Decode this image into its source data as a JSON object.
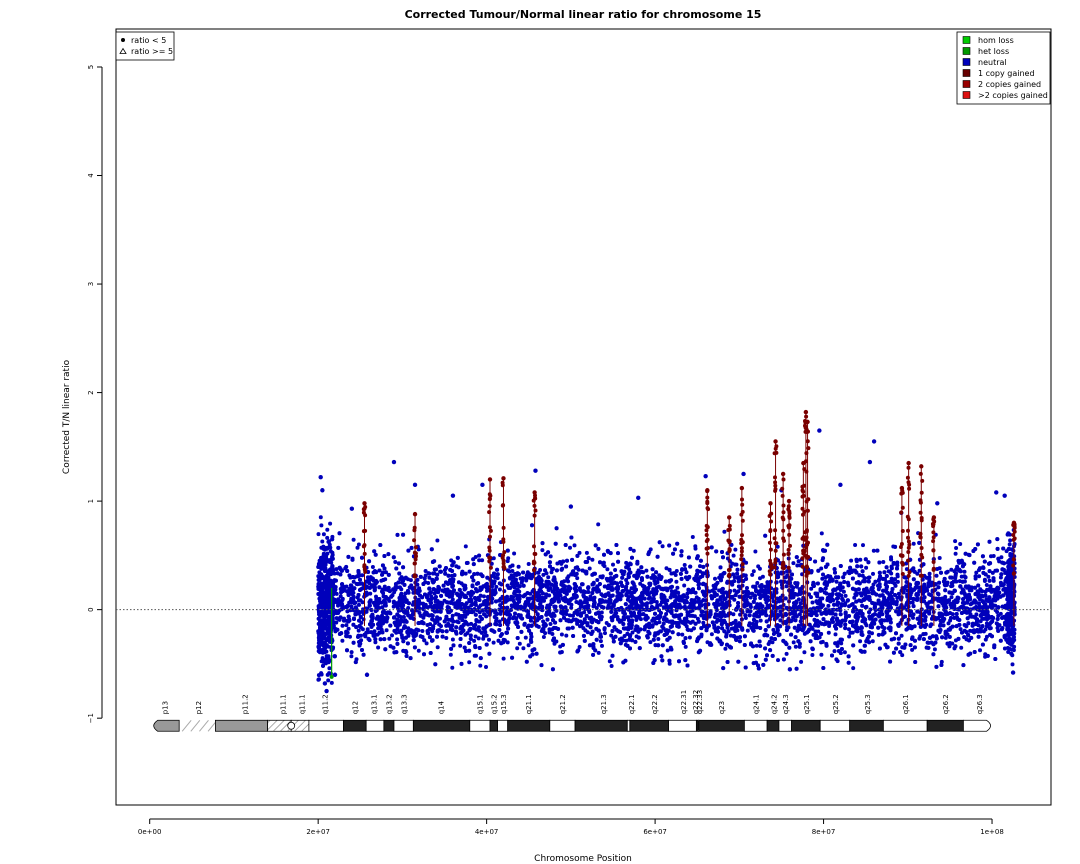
{
  "chart_data": {
    "type": "scatter",
    "title": "Corrected Tumour/Normal linear ratio for chromosome  15",
    "xlabel": "Chromosome Position",
    "ylabel": "Corrected T/N linear ratio",
    "xlim": [
      -4000000,
      107000000
    ],
    "ylim": [
      -1.8,
      5.35
    ],
    "x_ticks": [
      {
        "value": 0,
        "label": "0e+00"
      },
      {
        "value": 20000000,
        "label": "2e+07"
      },
      {
        "value": 40000000,
        "label": "4e+07"
      },
      {
        "value": 60000000,
        "label": "6e+07"
      },
      {
        "value": 80000000,
        "label": "8e+07"
      },
      {
        "value": 100000000,
        "label": "1e+08"
      }
    ],
    "y_ticks": [
      {
        "value": -1,
        "label": "−1"
      },
      {
        "value": 0,
        "label": "0"
      },
      {
        "value": 1,
        "label": "1"
      },
      {
        "value": 2,
        "label": "2"
      },
      {
        "value": 3,
        "label": "3"
      },
      {
        "value": 4,
        "label": "4"
      },
      {
        "value": 5,
        "label": "5"
      }
    ],
    "reference_line": {
      "y": 0,
      "style": "dotted",
      "color": "#555555"
    },
    "shape_legend": {
      "position": "top-left",
      "entries": [
        {
          "symbol": "circle",
          "label": "ratio < 5"
        },
        {
          "symbol": "triangle",
          "label": "ratio >= 5"
        }
      ]
    },
    "legend": {
      "position": "top-right",
      "entries": [
        {
          "label": "hom loss",
          "color": "#00cc00"
        },
        {
          "label": "het loss",
          "color": "#009900"
        },
        {
          "label": "neutral",
          "color": "#0000bb"
        },
        {
          "label": "1 copy gained",
          "color": "#660000"
        },
        {
          "label": "2 copies gained",
          "color": "#990000"
        },
        {
          "label": ">2 copies gained",
          "color": "#dd1111"
        }
      ]
    },
    "series": [
      {
        "name": "neutral",
        "color": "#0000bb",
        "cloud": {
          "x_start": 20000000,
          "x_end": 102500000,
          "center": 0.05,
          "spread": 0.22
        },
        "points": [
          {
            "x": 20300000,
            "y": 1.22
          },
          {
            "x": 20500000,
            "y": 1.1
          },
          {
            "x": 20800000,
            "y": -0.68
          },
          {
            "x": 21000000,
            "y": -0.75
          },
          {
            "x": 22000000,
            "y": -0.6
          },
          {
            "x": 24000000,
            "y": 0.93
          },
          {
            "x": 25800000,
            "y": -0.6
          },
          {
            "x": 29000000,
            "y": 1.36
          },
          {
            "x": 31500000,
            "y": 1.15
          },
          {
            "x": 36000000,
            "y": 1.05
          },
          {
            "x": 39500000,
            "y": 1.15
          },
          {
            "x": 45800000,
            "y": 1.28
          },
          {
            "x": 50000000,
            "y": 0.95
          },
          {
            "x": 58000000,
            "y": 1.03
          },
          {
            "x": 66000000,
            "y": 1.23
          },
          {
            "x": 70500000,
            "y": 1.25
          },
          {
            "x": 75000000,
            "y": 1.1
          },
          {
            "x": 76000000,
            "y": -0.55
          },
          {
            "x": 79500000,
            "y": 1.65
          },
          {
            "x": 82000000,
            "y": 1.15
          },
          {
            "x": 86000000,
            "y": 1.55
          },
          {
            "x": 85500000,
            "y": 1.36
          },
          {
            "x": 93500000,
            "y": 0.98
          },
          {
            "x": 100500000,
            "y": 1.08
          },
          {
            "x": 101500000,
            "y": 1.05
          },
          {
            "x": 102500000,
            "y": -0.58
          }
        ]
      },
      {
        "name": "1 copy gained",
        "color": "#7a0000",
        "spikes": [
          {
            "x": 25500000,
            "top": 0.98
          },
          {
            "x": 31500000,
            "top": 0.88
          },
          {
            "x": 40400000,
            "top": 1.2
          },
          {
            "x": 42000000,
            "top": 1.21
          },
          {
            "x": 45700000,
            "top": 1.08
          },
          {
            "x": 66200000,
            "top": 1.1
          },
          {
            "x": 68800000,
            "top": 0.85
          },
          {
            "x": 70300000,
            "top": 1.12
          },
          {
            "x": 73700000,
            "top": 0.98
          },
          {
            "x": 74300000,
            "top": 1.55
          },
          {
            "x": 75200000,
            "top": 1.25
          },
          {
            "x": 75900000,
            "top": 1.0
          },
          {
            "x": 77600000,
            "top": 1.35
          },
          {
            "x": 77900000,
            "top": 1.82
          },
          {
            "x": 78100000,
            "top": 1.73
          },
          {
            "x": 89300000,
            "top": 1.12
          },
          {
            "x": 90100000,
            "top": 1.35
          },
          {
            "x": 91600000,
            "top": 1.32
          },
          {
            "x": 93100000,
            "top": 0.85
          },
          {
            "x": 102600000,
            "top": 0.8
          }
        ]
      },
      {
        "name": "het loss",
        "color": "#009900",
        "spikes_down": [
          {
            "x": 21600000,
            "bottom": -0.62
          }
        ]
      }
    ],
    "ideogram": {
      "y": -1.07,
      "bands": [
        {
          "name": "p13",
          "start": 0,
          "end": 3500000,
          "type": "stalk-p"
        },
        {
          "name": "p12",
          "start": 3500000,
          "end": 7800000,
          "type": "stalk"
        },
        {
          "name": "p11.2",
          "start": 7800000,
          "end": 14000000,
          "type": "gvar"
        },
        {
          "name": "p11.1",
          "start": 14000000,
          "end": 16800000,
          "type": "hatch"
        },
        {
          "name": "q11.1",
          "start": 16800000,
          "end": 18900000,
          "type": "hatch"
        },
        {
          "name": "q11.2",
          "start": 18900000,
          "end": 23000000,
          "type": "white"
        },
        {
          "name": "q12",
          "start": 23000000,
          "end": 25700000,
          "type": "black"
        },
        {
          "name": "q13.1",
          "start": 25700000,
          "end": 27800000,
          "type": "white"
        },
        {
          "name": "q13.2",
          "start": 27800000,
          "end": 29000000,
          "type": "black"
        },
        {
          "name": "q13.3",
          "start": 29000000,
          "end": 31300000,
          "type": "white"
        },
        {
          "name": "q14",
          "start": 31300000,
          "end": 38000000,
          "type": "black"
        },
        {
          "name": "q15.1",
          "start": 38000000,
          "end": 40400000,
          "type": "white"
        },
        {
          "name": "q15.2",
          "start": 40400000,
          "end": 41300000,
          "type": "black"
        },
        {
          "name": "q15.3",
          "start": 41300000,
          "end": 42500000,
          "type": "white"
        },
        {
          "name": "q21.1",
          "start": 42500000,
          "end": 47500000,
          "type": "black"
        },
        {
          "name": "q21.2",
          "start": 47500000,
          "end": 50500000,
          "type": "white"
        },
        {
          "name": "q21.3",
          "start": 50500000,
          "end": 56700000,
          "type": "black"
        },
        {
          "name": "q22.1",
          "start": 56700000,
          "end": 57000000,
          "type": "white"
        },
        {
          "name": "q22.2",
          "start": 57000000,
          "end": 61600000,
          "type": "black"
        },
        {
          "name": "q22.31",
          "start": 61600000,
          "end": 64900000,
          "type": "white"
        },
        {
          "name": "q22.32",
          "start": 64900000,
          "end": 65100000,
          "type": "black"
        },
        {
          "name": "q22.33",
          "start": 65100000,
          "end": 65200000,
          "type": "white"
        },
        {
          "name": "q23",
          "start": 65200000,
          "end": 70600000,
          "type": "black"
        },
        {
          "name": "q24.1",
          "start": 70600000,
          "end": 73300000,
          "type": "white"
        },
        {
          "name": "q24.2",
          "start": 73300000,
          "end": 74700000,
          "type": "black"
        },
        {
          "name": "q24.3",
          "start": 74700000,
          "end": 76200000,
          "type": "white"
        },
        {
          "name": "q25.1",
          "start": 76200000,
          "end": 79600000,
          "type": "black"
        },
        {
          "name": "q25.2",
          "start": 79600000,
          "end": 83100000,
          "type": "white"
        },
        {
          "name": "q25.3",
          "start": 83100000,
          "end": 87100000,
          "type": "black"
        },
        {
          "name": "q26.1",
          "start": 87100000,
          "end": 92300000,
          "type": "white"
        },
        {
          "name": "q26.2",
          "start": 92300000,
          "end": 96600000,
          "type": "black"
        },
        {
          "name": "q26.3",
          "start": 96600000,
          "end": 100300000,
          "type": "white-end"
        }
      ],
      "labels": [
        {
          "name": "p13",
          "at": 1800000
        },
        {
          "name": "p12",
          "at": 5800000
        },
        {
          "name": "p11.2",
          "at": 11300000
        },
        {
          "name": "p11.1",
          "at": 15800000
        },
        {
          "name": "q11.1",
          "at": 18100000
        },
        {
          "name": "q11.2",
          "at": 20800000
        },
        {
          "name": "q12",
          "at": 24400000
        },
        {
          "name": "q13.1",
          "at": 26600000
        },
        {
          "name": "q13.2",
          "at": 28400000
        },
        {
          "name": "q13.3",
          "at": 30200000
        },
        {
          "name": "q14",
          "at": 34600000
        },
        {
          "name": "q15.1",
          "at": 39200000
        },
        {
          "name": "q15.2",
          "at": 40900000
        },
        {
          "name": "q15.3",
          "at": 42000000
        },
        {
          "name": "q21.1",
          "at": 45000000
        },
        {
          "name": "q21.2",
          "at": 49000000
        },
        {
          "name": "q21.3",
          "at": 53900000
        },
        {
          "name": "q22.1",
          "at": 57200000
        },
        {
          "name": "q22.2",
          "at": 59900000
        },
        {
          "name": "q22.31",
          "at": 63400000
        },
        {
          "name": "q22.32",
          "at": 64800000
        },
        {
          "name": "q22.33",
          "at": 65300000
        },
        {
          "name": "q23",
          "at": 67900000
        },
        {
          "name": "q24.1",
          "at": 72000000
        },
        {
          "name": "q24.2",
          "at": 74100000
        },
        {
          "name": "q24.3",
          "at": 75500000
        },
        {
          "name": "q25.1",
          "at": 78000000
        },
        {
          "name": "q25.2",
          "at": 81400000
        },
        {
          "name": "q25.3",
          "at": 85200000
        },
        {
          "name": "q26.1",
          "at": 89700000
        },
        {
          "name": "q26.2",
          "at": 94500000
        },
        {
          "name": "q26.3",
          "at": 98500000
        }
      ]
    }
  }
}
